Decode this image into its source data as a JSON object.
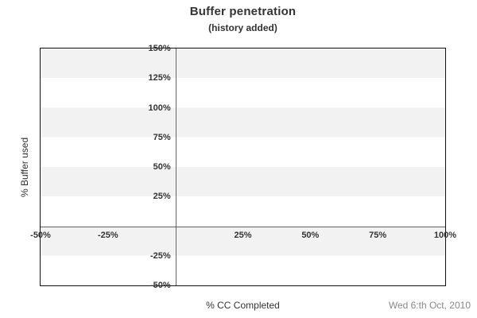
{
  "header": {
    "title": "Buffer penetration",
    "subtitle": "(history added)"
  },
  "footer": {
    "date": "Wed 6:th Oct, 2010"
  },
  "chart_data": {
    "type": "scatter",
    "title": "Buffer penetration",
    "subtitle": "(history added)",
    "xlabel": "% CC Completed",
    "ylabel": "% Buffer used",
    "xlim": [
      -50,
      100
    ],
    "ylim": [
      -50,
      150
    ],
    "x_ticks": [
      {
        "label": "-50%",
        "value": -50
      },
      {
        "label": "-25%",
        "value": -25
      },
      {
        "label": "25%",
        "value": 25
      },
      {
        "label": "50%",
        "value": 50
      },
      {
        "label": "75%",
        "value": 75
      },
      {
        "label": "100%",
        "value": 100
      }
    ],
    "y_ticks": [
      {
        "label": "150%",
        "value": 150
      },
      {
        "label": "125%",
        "value": 125
      },
      {
        "label": "100%",
        "value": 100
      },
      {
        "label": "75%",
        "value": 75
      },
      {
        "label": "50%",
        "value": 50
      },
      {
        "label": "25%",
        "value": 25
      },
      {
        "label": "-25%",
        "value": -25
      },
      {
        "label": "-50%",
        "value": -50
      }
    ],
    "series": [],
    "grid": "alternating horizontal bands every 25%, starting gray below 150%",
    "legend": "none",
    "colors": {
      "band": "#f2f2f2",
      "plot_border": "#111111",
      "zero_axes": "#666666",
      "text": "#333333",
      "date_text": "#888888"
    }
  }
}
